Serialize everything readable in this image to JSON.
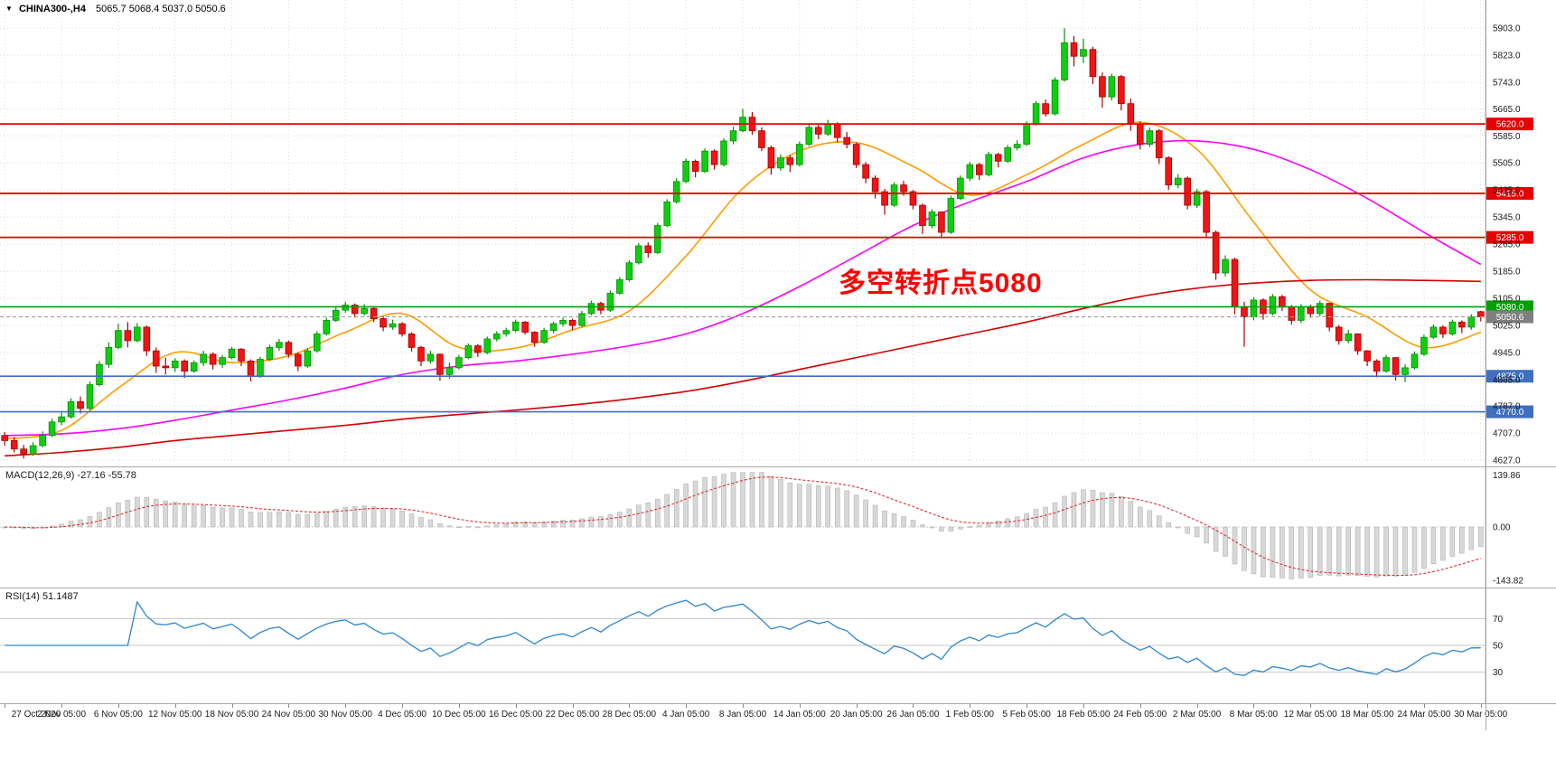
{
  "header": {
    "symbol": "CHINA300-,H4",
    "ohlc": "5065.7 5068.4 5037.0 5050.6",
    "dropdown_icon": "▼"
  },
  "annotation": {
    "text": "多空转折点5080",
    "color": "#ff0000"
  },
  "colors": {
    "up_fill": "#0fce0f",
    "up_stroke": "#0a8f0a",
    "down_fill": "#f01414",
    "down_stroke": "#a80000",
    "grid": "#dcdcdc",
    "axis_text": "#1a1a1a",
    "separator": "#a9a9a9",
    "current_price_tag": "#7f7f7f"
  },
  "price_axis": {
    "labels": [
      "5903.0",
      "5823.0",
      "5743.0",
      "5665.0",
      "5585.0",
      "5505.0",
      "5425.0",
      "5345.0",
      "5265.0",
      "5185.0",
      "5105.0",
      "5025.0",
      "4945.0",
      "4865.0",
      "4787.0",
      "4707.0",
      "4627.0"
    ]
  },
  "time_axis": {
    "labels": [
      "27 Oct 2020",
      "2 Nov 05:00",
      "6 Nov 05:00",
      "12 Nov 05:00",
      "18 Nov 05:00",
      "24 Nov 05:00",
      "30 Nov 05:00",
      "4 Dec 05:00",
      "10 Dec 05:00",
      "16 Dec 05:00",
      "22 Dec 05:00",
      "28 Dec 05:00",
      "4 Jan 05:00",
      "8 Jan 05:00",
      "14 Jan 05:00",
      "20 Jan 05:00",
      "26 Jan 05:00",
      "1 Feb 05:00",
      "5 Feb 05:00",
      "18 Feb 05:00",
      "24 Feb 05:00",
      "2 Mar 05:00",
      "8 Mar 05:00",
      "12 Mar 05:00",
      "18 Mar 05:00",
      "24 Mar 05:00",
      "30 Mar 05:00"
    ],
    "candles_per_label": 6
  },
  "levels": [
    {
      "price": 5620.0,
      "label": "5620.0",
      "color": "#e60000",
      "width": 1.8
    },
    {
      "price": 5415.0,
      "label": "5415.0",
      "color": "#e60000",
      "width": 1.8
    },
    {
      "price": 5285.0,
      "label": "5285.0",
      "color": "#e60000",
      "width": 1.8
    },
    {
      "price": 5080.0,
      "label": "5080.0",
      "color": "#00a000",
      "width": 1.6
    },
    {
      "price": 4875.0,
      "label": "4875.0",
      "color": "#3f6fbf",
      "width": 1.6
    },
    {
      "price": 4770.0,
      "label": "4770.0",
      "color": "#3f6fbf",
      "width": 1.6
    }
  ],
  "current_price": {
    "value": 5050.6,
    "label": "5050.6"
  },
  "chart_data": {
    "type": "candlestick",
    "symbol": "CHINA300-",
    "timeframe": "H4",
    "title": "CHINA300-,H4 5065.7 5068.4 5037.0 5050.6",
    "ylim": [
      4627,
      5903
    ],
    "candles_ohlc": [
      [
        4700,
        4710,
        4670,
        4685
      ],
      [
        4685,
        4695,
        4650,
        4660
      ],
      [
        4660,
        4672,
        4632,
        4645
      ],
      [
        4645,
        4680,
        4640,
        4670
      ],
      [
        4670,
        4712,
        4665,
        4700
      ],
      [
        4700,
        4750,
        4695,
        4740
      ],
      [
        4740,
        4768,
        4730,
        4755
      ],
      [
        4755,
        4810,
        4750,
        4800
      ],
      [
        4800,
        4815,
        4765,
        4780
      ],
      [
        4780,
        4860,
        4775,
        4850
      ],
      [
        4850,
        4920,
        4845,
        4910
      ],
      [
        4910,
        4975,
        4900,
        4960
      ],
      [
        4960,
        5030,
        4955,
        5010
      ],
      [
        5010,
        5035,
        4960,
        4980
      ],
      [
        4980,
        5032,
        4975,
        5020
      ],
      [
        5020,
        5025,
        4935,
        4950
      ],
      [
        4950,
        4960,
        4885,
        4905
      ],
      [
        4905,
        4930,
        4880,
        4900
      ],
      [
        4900,
        4928,
        4888,
        4920
      ],
      [
        4920,
        4925,
        4870,
        4890
      ],
      [
        4890,
        4922,
        4885,
        4915
      ],
      [
        4915,
        4950,
        4905,
        4940
      ],
      [
        4940,
        4945,
        4895,
        4910
      ],
      [
        4910,
        4938,
        4900,
        4930
      ],
      [
        4930,
        4962,
        4925,
        4955
      ],
      [
        4955,
        4958,
        4905,
        4920
      ],
      [
        4920,
        4925,
        4860,
        4875
      ],
      [
        4875,
        4932,
        4870,
        4925
      ],
      [
        4925,
        4968,
        4920,
        4960
      ],
      [
        4960,
        4985,
        4950,
        4975
      ],
      [
        4975,
        4980,
        4930,
        4940
      ],
      [
        4940,
        4945,
        4890,
        4905
      ],
      [
        4905,
        4958,
        4900,
        4950
      ],
      [
        4950,
        5008,
        4945,
        5000
      ],
      [
        5000,
        5048,
        4995,
        5040
      ],
      [
        5040,
        5082,
        5035,
        5070
      ],
      [
        5070,
        5095,
        5062,
        5085
      ],
      [
        5085,
        5090,
        5048,
        5060
      ],
      [
        5060,
        5088,
        5055,
        5075
      ],
      [
        5075,
        5080,
        5035,
        5045
      ],
      [
        5045,
        5052,
        5008,
        5020
      ],
      [
        5020,
        5042,
        5012,
        5030
      ],
      [
        5030,
        5035,
        4992,
        5000
      ],
      [
        5000,
        5005,
        4948,
        4960
      ],
      [
        4960,
        4965,
        4905,
        4920
      ],
      [
        4920,
        4950,
        4912,
        4940
      ],
      [
        4940,
        4942,
        4862,
        4880
      ],
      [
        4880,
        4915,
        4868,
        4900
      ],
      [
        4900,
        4938,
        4895,
        4930
      ],
      [
        4930,
        4972,
        4925,
        4965
      ],
      [
        4965,
        4970,
        4932,
        4945
      ],
      [
        4945,
        4992,
        4940,
        4985
      ],
      [
        4985,
        5008,
        4978,
        5000
      ],
      [
        5000,
        5018,
        4992,
        5010
      ],
      [
        5010,
        5042,
        5005,
        5035
      ],
      [
        5035,
        5038,
        4998,
        5005
      ],
      [
        5005,
        5008,
        4962,
        4975
      ],
      [
        4975,
        5018,
        4970,
        5010
      ],
      [
        5010,
        5036,
        5002,
        5030
      ],
      [
        5030,
        5048,
        5022,
        5040
      ],
      [
        5040,
        5045,
        5010,
        5025
      ],
      [
        5025,
        5068,
        5020,
        5060
      ],
      [
        5060,
        5098,
        5055,
        5090
      ],
      [
        5090,
        5095,
        5058,
        5070
      ],
      [
        5070,
        5128,
        5065,
        5120
      ],
      [
        5120,
        5168,
        5115,
        5160
      ],
      [
        5160,
        5218,
        5155,
        5210
      ],
      [
        5210,
        5268,
        5205,
        5260
      ],
      [
        5260,
        5270,
        5225,
        5240
      ],
      [
        5240,
        5328,
        5235,
        5320
      ],
      [
        5320,
        5398,
        5315,
        5390
      ],
      [
        5390,
        5460,
        5385,
        5450
      ],
      [
        5450,
        5518,
        5445,
        5510
      ],
      [
        5510,
        5515,
        5462,
        5480
      ],
      [
        5480,
        5548,
        5475,
        5540
      ],
      [
        5540,
        5545,
        5485,
        5500
      ],
      [
        5500,
        5578,
        5495,
        5570
      ],
      [
        5570,
        5612,
        5560,
        5600
      ],
      [
        5600,
        5665,
        5595,
        5640
      ],
      [
        5640,
        5655,
        5588,
        5600
      ],
      [
        5600,
        5610,
        5540,
        5550
      ],
      [
        5550,
        5556,
        5470,
        5490
      ],
      [
        5490,
        5530,
        5482,
        5520
      ],
      [
        5520,
        5528,
        5478,
        5500
      ],
      [
        5500,
        5568,
        5495,
        5560
      ],
      [
        5560,
        5622,
        5555,
        5610
      ],
      [
        5610,
        5618,
        5575,
        5590
      ],
      [
        5590,
        5632,
        5585,
        5620
      ],
      [
        5620,
        5625,
        5565,
        5580
      ],
      [
        5580,
        5596,
        5548,
        5560
      ],
      [
        5560,
        5565,
        5490,
        5500
      ],
      [
        5500,
        5508,
        5445,
        5460
      ],
      [
        5460,
        5468,
        5400,
        5420
      ],
      [
        5420,
        5428,
        5352,
        5380
      ],
      [
        5380,
        5448,
        5375,
        5440
      ],
      [
        5440,
        5452,
        5408,
        5420
      ],
      [
        5420,
        5425,
        5368,
        5380
      ],
      [
        5380,
        5385,
        5295,
        5320
      ],
      [
        5320,
        5368,
        5312,
        5360
      ],
      [
        5360,
        5362,
        5282,
        5300
      ],
      [
        5300,
        5408,
        5295,
        5400
      ],
      [
        5400,
        5468,
        5395,
        5460
      ],
      [
        5460,
        5508,
        5452,
        5500
      ],
      [
        5500,
        5505,
        5455,
        5470
      ],
      [
        5470,
        5538,
        5465,
        5530
      ],
      [
        5530,
        5535,
        5492,
        5510
      ],
      [
        5510,
        5558,
        5505,
        5550
      ],
      [
        5550,
        5572,
        5542,
        5560
      ],
      [
        5560,
        5628,
        5555,
        5620
      ],
      [
        5620,
        5688,
        5615,
        5680
      ],
      [
        5680,
        5692,
        5642,
        5650
      ],
      [
        5650,
        5758,
        5645,
        5750
      ],
      [
        5750,
        5903,
        5745,
        5860
      ],
      [
        5860,
        5880,
        5790,
        5820
      ],
      [
        5820,
        5872,
        5800,
        5840
      ],
      [
        5840,
        5848,
        5738,
        5760
      ],
      [
        5760,
        5772,
        5668,
        5700
      ],
      [
        5700,
        5768,
        5690,
        5760
      ],
      [
        5760,
        5765,
        5660,
        5680
      ],
      [
        5680,
        5695,
        5600,
        5620
      ],
      [
        5620,
        5628,
        5545,
        5560
      ],
      [
        5560,
        5610,
        5552,
        5600
      ],
      [
        5600,
        5605,
        5502,
        5520
      ],
      [
        5520,
        5525,
        5425,
        5440
      ],
      [
        5440,
        5472,
        5430,
        5460
      ],
      [
        5460,
        5465,
        5368,
        5380
      ],
      [
        5380,
        5428,
        5372,
        5420
      ],
      [
        5420,
        5425,
        5285,
        5300
      ],
      [
        5300,
        5305,
        5160,
        5180
      ],
      [
        5180,
        5232,
        5170,
        5220
      ],
      [
        5220,
        5225,
        5058,
        5080
      ],
      [
        5080,
        5095,
        4962,
        5050
      ],
      [
        5050,
        5108,
        5040,
        5100
      ],
      [
        5100,
        5105,
        5042,
        5060
      ],
      [
        5060,
        5118,
        5055,
        5110
      ],
      [
        5110,
        5115,
        5068,
        5080
      ],
      [
        5080,
        5085,
        5028,
        5040
      ],
      [
        5040,
        5088,
        5032,
        5080
      ],
      [
        5080,
        5086,
        5048,
        5060
      ],
      [
        5060,
        5098,
        5052,
        5090
      ],
      [
        5090,
        5092,
        5008,
        5020
      ],
      [
        5020,
        5026,
        4968,
        4980
      ],
      [
        4980,
        5012,
        4972,
        5000
      ],
      [
        5000,
        5002,
        4938,
        4950
      ],
      [
        4950,
        4952,
        4905,
        4920
      ],
      [
        4920,
        4925,
        4872,
        4890
      ],
      [
        4890,
        4938,
        4885,
        4930
      ],
      [
        4930,
        4932,
        4862,
        4880
      ],
      [
        4880,
        4910,
        4858,
        4900
      ],
      [
        4900,
        4948,
        4895,
        4940
      ],
      [
        4940,
        4998,
        4935,
        4990
      ],
      [
        4990,
        5028,
        4985,
        5020
      ],
      [
        5020,
        5025,
        4988,
        5000
      ],
      [
        5000,
        5042,
        4995,
        5035
      ],
      [
        5035,
        5040,
        5002,
        5020
      ],
      [
        5020,
        5058,
        5012,
        5050
      ],
      [
        5065.7,
        5068.4,
        5037.0,
        5050.6
      ]
    ],
    "ma_lines": [
      {
        "name": "ma-fast",
        "color": "#ff9c00",
        "width": 1.6,
        "values": [
          4690,
          4715,
          4840,
          4945,
          4915,
          4935,
          5005,
          5060,
          4960,
          4958,
          5012,
          5068,
          5230,
          5430,
          5540,
          5565,
          5495,
          5410,
          5470,
          5560,
          5625,
          5545,
          5330,
          5130,
          5050,
          4960,
          5005
        ]
      },
      {
        "name": "ma-mid",
        "color": "#ff00ff",
        "width": 1.6,
        "values": [
          4700,
          4705,
          4720,
          4745,
          4775,
          4805,
          4840,
          4880,
          4905,
          4920,
          4940,
          4965,
          5000,
          5060,
          5140,
          5230,
          5320,
          5390,
          5450,
          5520,
          5560,
          5570,
          5545,
          5485,
          5400,
          5300,
          5205
        ]
      },
      {
        "name": "ma-slow",
        "color": "#d40000",
        "width": 1.6,
        "values": [
          4640,
          4650,
          4665,
          4685,
          4700,
          4715,
          4730,
          4748,
          4762,
          4775,
          4790,
          4808,
          4830,
          4860,
          4895,
          4930,
          4965,
          5000,
          5035,
          5075,
          5110,
          5135,
          5150,
          5158,
          5160,
          5158,
          5155
        ]
      }
    ],
    "macd": {
      "label": "MACD(12,26,9) -27.16 -55.78",
      "fast": 12,
      "slow": 26,
      "signal": 9,
      "value_main": -27.16,
      "value_signal": -55.78,
      "axis_labels": [
        "139.86",
        "0.00",
        "-143.82"
      ],
      "axis_max": 139.86,
      "axis_min": -143.82,
      "histogram_color": "#d8d8d8",
      "histogram_stroke": "#b5b5b5",
      "signal_color": "#e03030"
    },
    "rsi": {
      "label": "RSI(14) 51.1487",
      "period": 14,
      "value": 51.1487,
      "levels": [
        70,
        50,
        30
      ],
      "axis_labels": [
        "70",
        "50",
        "30"
      ],
      "line_color": "#2e86d0",
      "level_color": "#c9c9c9"
    }
  }
}
